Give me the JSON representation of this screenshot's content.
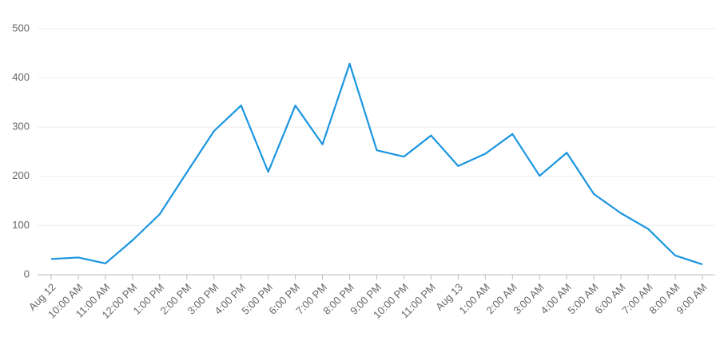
{
  "chart_data": {
    "type": "line",
    "categories": [
      "Aug 12",
      "10:00 AM",
      "11:00 AM",
      "12:00 PM",
      "1:00 PM",
      "2:00 PM",
      "3:00 PM",
      "4:00 PM",
      "5:00 PM",
      "6:00 PM",
      "7:00 PM",
      "8:00 PM",
      "9:00 PM",
      "10:00 PM",
      "11:00 PM",
      "Aug 13",
      "1:00 AM",
      "2:00 AM",
      "3:00 AM",
      "4:00 AM",
      "5:00 AM",
      "6:00 AM",
      "7:00 AM",
      "8:00 AM",
      "9:00 AM"
    ],
    "values": [
      32,
      35,
      23,
      70,
      123,
      208,
      292,
      344,
      209,
      344,
      265,
      429,
      253,
      240,
      283,
      221,
      246,
      286,
      201,
      248,
      164,
      125,
      93,
      39,
      21
    ],
    "color": "#1a95e0",
    "ylim": [
      0,
      500
    ],
    "yticks": [
      0,
      100,
      200,
      300,
      400,
      500
    ],
    "grid": true
  }
}
